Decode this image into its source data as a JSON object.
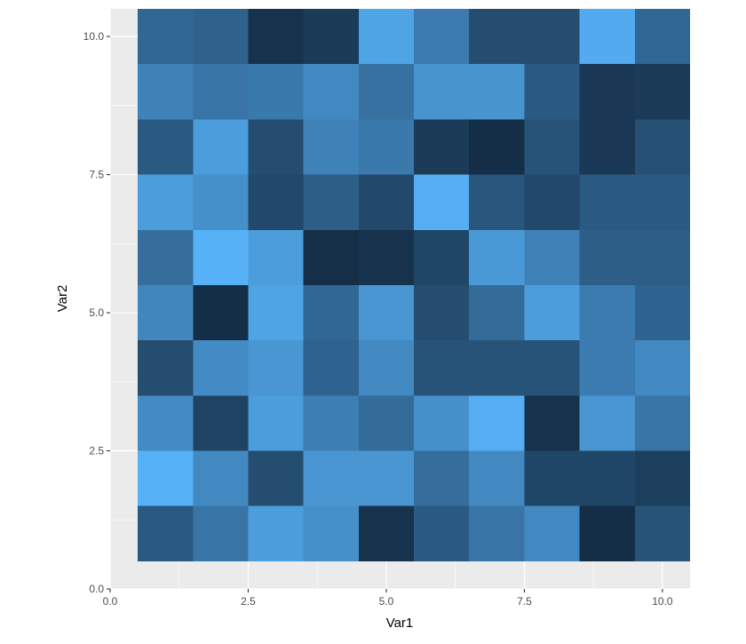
{
  "chart_data": {
    "type": "heatmap",
    "title": "",
    "xlabel": "Var1",
    "ylabel": "Var2",
    "x": [
      1,
      2,
      3,
      4,
      5,
      6,
      7,
      8,
      9,
      10
    ],
    "y": [
      1,
      2,
      3,
      4,
      5,
      6,
      7,
      8,
      9,
      10
    ],
    "xlim": [
      0,
      10.5
    ],
    "ylim": [
      0,
      10.5
    ],
    "x_ticks": [
      0,
      2.5,
      5,
      7.5,
      10
    ],
    "x_tick_labels": [
      "0.0",
      "2.5",
      "5.0",
      "7.5",
      "10.0"
    ],
    "y_ticks": [
      0,
      2.5,
      5,
      7.5,
      10
    ],
    "y_tick_labels": [
      "0.0",
      "2.5",
      "5.0",
      "7.5",
      "10.0"
    ],
    "grid": true,
    "legend": "none",
    "colors": {
      "low": "#132B43",
      "high": "#56B1F7",
      "panel_background": "#EBEBEB",
      "grid_line": "#FFFFFF"
    },
    "values": [
      [
        0.35,
        0.55,
        0.85,
        0.75,
        0.05,
        0.35,
        0.55,
        0.7,
        0.02,
        0.3
      ],
      [
        1.0,
        0.7,
        0.25,
        0.8,
        0.8,
        0.5,
        0.7,
        0.2,
        0.2,
        0.15
      ],
      [
        0.72,
        0.18,
        0.85,
        0.62,
        0.48,
        0.75,
        0.98,
        0.05,
        0.8,
        0.55
      ],
      [
        0.25,
        0.72,
        0.8,
        0.42,
        0.7,
        0.3,
        0.3,
        0.3,
        0.6,
        0.7
      ],
      [
        0.68,
        0.02,
        0.9,
        0.45,
        0.8,
        0.25,
        0.48,
        0.85,
        0.6,
        0.42
      ],
      [
        0.5,
        1.0,
        0.85,
        0.03,
        0.05,
        0.2,
        0.82,
        0.65,
        0.38,
        0.38
      ],
      [
        0.85,
        0.75,
        0.22,
        0.38,
        0.22,
        0.98,
        0.32,
        0.22,
        0.35,
        0.35
      ],
      [
        0.35,
        0.85,
        0.25,
        0.65,
        0.58,
        0.12,
        0.02,
        0.3,
        0.1,
        0.28
      ],
      [
        0.65,
        0.55,
        0.58,
        0.7,
        0.52,
        0.78,
        0.78,
        0.35,
        0.1,
        0.12
      ],
      [
        0.45,
        0.4,
        0.05,
        0.12,
        0.9,
        0.6,
        0.25,
        0.25,
        0.95,
        0.45
      ]
    ]
  }
}
